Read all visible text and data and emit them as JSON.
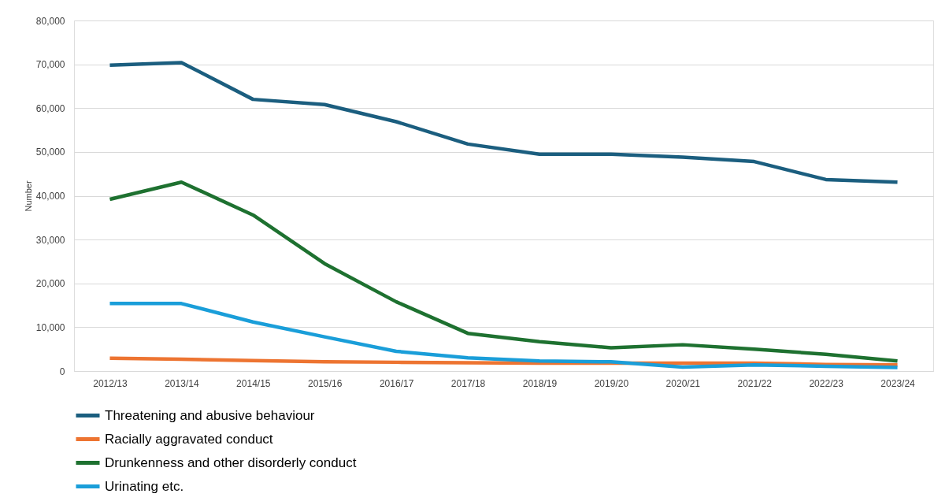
{
  "chart_data": {
    "type": "line",
    "ylabel": "Number",
    "categories": [
      "2012/13",
      "2013/14",
      "2014/15",
      "2015/16",
      "2016/17",
      "2017/18",
      "2018/19",
      "2019/20",
      "2020/21",
      "2021/22",
      "2022/23",
      "2023/24"
    ],
    "series": [
      {
        "name": "Threatening and abusive behaviour",
        "color": "#1b5e7f",
        "values": [
          69800,
          70400,
          62000,
          60800,
          56900,
          51800,
          49500,
          49500,
          48800,
          47800,
          43700,
          43100
        ]
      },
      {
        "name": "Racially aggravated conduct",
        "color": "#ed7431",
        "values": [
          2900,
          2700,
          2400,
          2100,
          2000,
          1900,
          1800,
          1800,
          1800,
          1800,
          1500,
          1400
        ]
      },
      {
        "name": "Drunkenness and other disorderly conduct",
        "color": "#1e7130",
        "values": [
          39200,
          43100,
          35600,
          24500,
          15800,
          8600,
          6700,
          5300,
          6000,
          5000,
          3800,
          2300
        ]
      },
      {
        "name": "Urinating etc.",
        "color": "#1a9ed9",
        "values": [
          15400,
          15400,
          11200,
          7800,
          4500,
          3000,
          2300,
          2100,
          900,
          1400,
          1100,
          800
        ]
      }
    ],
    "ylim": [
      0,
      80000
    ],
    "yticks": [
      0,
      {
        "value": 10000,
        "label": "10,000"
      },
      {
        "value": 20000,
        "label": "20,000"
      },
      {
        "value": 30000,
        "label": "30,000"
      },
      {
        "value": 40000,
        "label": "40,000"
      },
      {
        "value": 50000,
        "label": "50,000"
      },
      {
        "value": 60000,
        "label": "60,000"
      },
      {
        "value": 70000,
        "label": "70,000"
      },
      {
        "value": 80000,
        "label": "80,000"
      }
    ],
    "grid": "y",
    "legend": "bottom",
    "marker": "none",
    "line_style": "solid"
  }
}
